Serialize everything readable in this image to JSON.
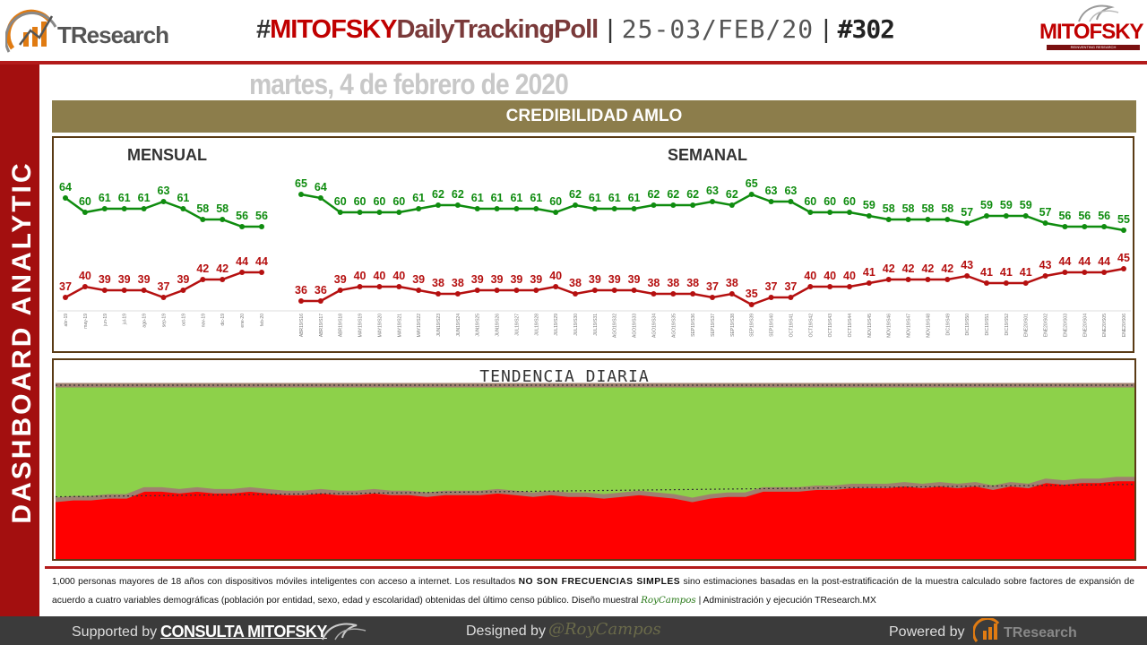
{
  "header": {
    "logo_left": "TResearch",
    "title_hash": "#",
    "title_brand": "MITOFSKY",
    "title_rest": "DailyTrackingPoll",
    "separator": "|",
    "date_range": "25-03/FEB/20",
    "issue": "#302",
    "logo_right": "MITOFSKY",
    "logo_right_sub": "REINVENTING RESEARCH"
  },
  "sidebar": {
    "label": "DASHBOARD ANALYTIC"
  },
  "date_line": "martes, 4 de febrero de 2020",
  "section_title": "CREDIBILIDAD AMLO",
  "daily_title": "TENDENCIA DIARIA",
  "footnote": {
    "part1": "1,000 personas mayores de 18 años con dispositivos móviles inteligentes con acceso a internet. Los resultados ",
    "bold": "NO SON FRECUENCIAS SIMPLES",
    "part2": " sino estimaciones basadas en la post-estratificación de la muestra calculado sobre factores de expansión de acuerdo a cuatro variables demográficas (población por entidad, sexo, edad y escolaridad) obtenidas del último censo público. Diseño muestral ",
    "designer": "RoyCampos",
    "part3": " | Administración  y ejecución ",
    "admin": "TResearch.MX"
  },
  "footer": {
    "supported_by": "Supported by",
    "consulta": "CONSULTA MITOFSKY",
    "designed_by": "Designed by",
    "designer_sig": "@RoyCampos",
    "powered_by": "Powered by",
    "powered_logo": "TResearch"
  },
  "colors": {
    "green": "#0f8c0f",
    "red": "#b51010",
    "area_green": "#8dd14a",
    "area_red": "#ff0000",
    "band": "#a08070",
    "accent": "#a30f0f",
    "olive": "#8c7d4b"
  },
  "chart_data": [
    {
      "type": "line",
      "title": "MENSUAL",
      "categories": [
        "abr-19",
        "may-19",
        "jun-19",
        "jul-19",
        "ago-19",
        "sep-19",
        "oct-19",
        "nov-19",
        "dic-19",
        "ene-20",
        "feb-20"
      ],
      "series": [
        {
          "values": [
            64,
            60,
            61,
            61,
            61,
            63,
            61,
            58,
            58,
            56,
            56
          ]
        },
        {
          "values": [
            37,
            40,
            39,
            39,
            39,
            37,
            39,
            42,
            42,
            44,
            44
          ]
        }
      ]
    },
    {
      "type": "line",
      "title": "SEMANAL",
      "categories": [
        "ABR19/S16",
        "ABR19/S17",
        "ABR19/S18",
        "MAY19/S19",
        "MAY19/S20",
        "MAY19/S21",
        "MAY19/S22",
        "JUN19/S23",
        "JUN19/S24",
        "JUN19/S25",
        "JUN19/S26",
        "JUL19/S27",
        "JUL19/S28",
        "JUL19/S29",
        "JUL19/S30",
        "JUL19/S31",
        "AGO19/S32",
        "AGO19/S33",
        "AGO19/S34",
        "AGO19/S35",
        "SEP19/S36",
        "SEP19/S37",
        "SEP19/S38",
        "SEP19/S39",
        "SEP19/S40",
        "OCT19/S41",
        "OCT19/S42",
        "OCT19/S43",
        "OCT19/S44",
        "NOV19/S45",
        "NOV19/S46",
        "NOV19/S47",
        "NOV19/S48",
        "DIC19/S49",
        "DIC19/S50",
        "DIC19/S51",
        "DIC19/S52",
        "ENE20/S01",
        "ENE20/S02",
        "ENE20/S03",
        "ENE20/S04",
        "ENE20/S05",
        "ENE20/S06"
      ],
      "series": [
        {
          "values": [
            65,
            64,
            60,
            60,
            60,
            60,
            61,
            62,
            62,
            61,
            61,
            61,
            61,
            60,
            62,
            61,
            61,
            61,
            62,
            62,
            62,
            63,
            62,
            65,
            63,
            63,
            60,
            60,
            60,
            59,
            58,
            58,
            58,
            58,
            57,
            59,
            59,
            59,
            57,
            56,
            56,
            56,
            55
          ]
        },
        {
          "values": [
            36,
            36,
            39,
            40,
            40,
            40,
            39,
            38,
            38,
            39,
            39,
            39,
            39,
            40,
            38,
            39,
            39,
            39,
            38,
            38,
            38,
            37,
            38,
            35,
            37,
            37,
            40,
            40,
            40,
            41,
            42,
            42,
            42,
            42,
            43,
            41,
            41,
            41,
            43,
            44,
            44,
            44,
            45
          ]
        }
      ]
    },
    {
      "type": "area",
      "title": "TENDENCIA DIARIA",
      "x": "daily, 25-abr-2019 to 03-feb-2020",
      "series": [
        {
          "values": [
            66,
            65,
            65,
            64,
            64,
            60,
            60,
            61,
            60,
            61,
            61,
            60,
            61,
            62,
            62,
            61,
            62,
            62,
            61,
            62,
            62,
            63,
            62,
            62,
            62,
            61,
            62,
            63,
            62,
            63,
            63,
            64,
            63,
            62,
            63,
            64,
            66,
            64,
            63,
            63,
            60,
            60,
            60,
            59,
            59,
            58,
            58,
            58,
            57,
            58,
            57,
            58,
            57,
            59,
            57,
            58,
            55,
            56,
            55,
            55,
            54,
            54
          ]
        },
        {
          "values": [
            34,
            35,
            35,
            36,
            36,
            40,
            40,
            39,
            40,
            39,
            39,
            40,
            39,
            38,
            38,
            39,
            38,
            38,
            39,
            38,
            38,
            37,
            38,
            38,
            38,
            39,
            38,
            37,
            38,
            37,
            37,
            36,
            37,
            38,
            37,
            36,
            34,
            36,
            37,
            37,
            40,
            40,
            40,
            41,
            41,
            42,
            42,
            42,
            43,
            42,
            43,
            42,
            43,
            41,
            43,
            42,
            45,
            44,
            45,
            45,
            46,
            46
          ]
        }
      ]
    }
  ]
}
